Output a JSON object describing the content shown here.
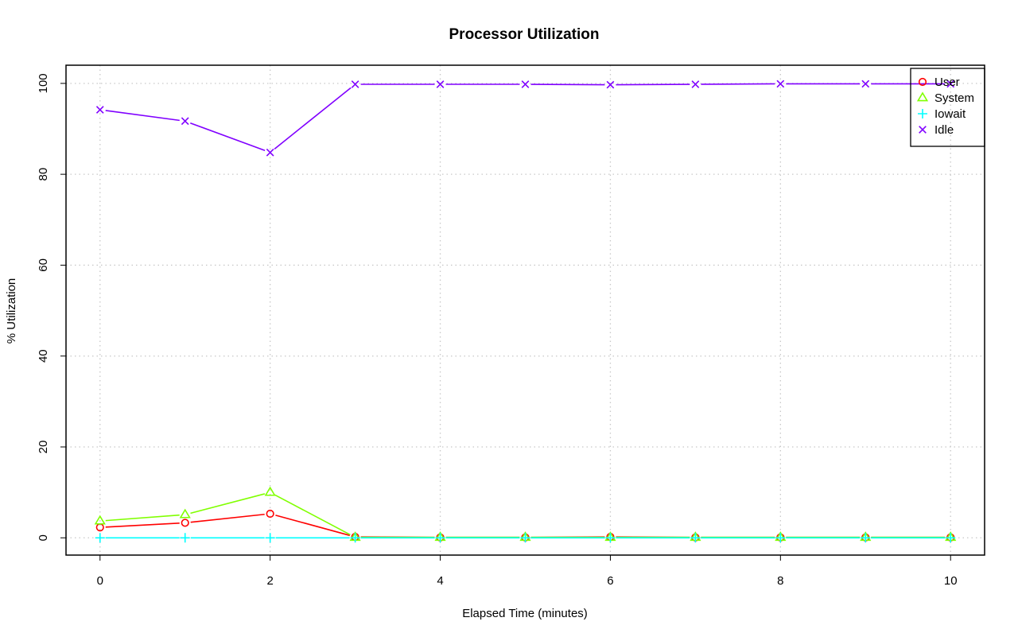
{
  "chart_data": {
    "type": "line",
    "title": "Processor Utilization",
    "xlabel": "Elapsed Time (minutes)",
    "ylabel": "% Utilization",
    "x": [
      0,
      1,
      2,
      3,
      4,
      5,
      6,
      7,
      8,
      9,
      10
    ],
    "xlim": [
      -0.4,
      10.4
    ],
    "ylim": [
      -3.8,
      104
    ],
    "xticks": [
      0,
      2,
      4,
      6,
      8,
      10
    ],
    "yticks": [
      0,
      20,
      40,
      60,
      80,
      100
    ],
    "grid": true,
    "legend_position": "top-right",
    "series": [
      {
        "name": "User",
        "marker": "circle",
        "color": "#ff0000",
        "values": [
          2.3,
          3.3,
          5.3,
          0.2,
          0.1,
          0.1,
          0.2,
          0.1,
          0.1,
          0.1,
          0.1
        ]
      },
      {
        "name": "System",
        "marker": "triangle",
        "color": "#80ff00",
        "values": [
          3.7,
          5.1,
          10.0,
          0.1,
          0.1,
          0.1,
          0.1,
          0.1,
          0.1,
          0.1,
          0.1
        ]
      },
      {
        "name": "Iowait",
        "marker": "plus",
        "color": "#00ffff",
        "values": [
          0.0,
          0.0,
          0.0,
          0.0,
          0.0,
          0.0,
          0.0,
          0.0,
          0.0,
          0.0,
          0.0
        ]
      },
      {
        "name": "Idle",
        "marker": "cross",
        "color": "#8000ff",
        "values": [
          94.2,
          91.7,
          84.8,
          99.8,
          99.8,
          99.8,
          99.7,
          99.8,
          99.9,
          99.9,
          99.9
        ]
      }
    ]
  }
}
